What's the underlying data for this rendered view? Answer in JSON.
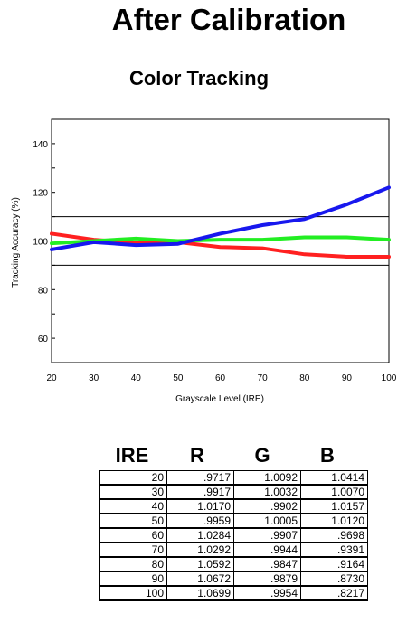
{
  "page_title": "After Calibration",
  "chart_data": {
    "type": "line",
    "title": "Color Tracking",
    "xlabel": "Grayscale Level (IRE)",
    "ylabel": "Tracking Accuracy (%)",
    "x": [
      20,
      30,
      40,
      50,
      60,
      70,
      80,
      90,
      100
    ],
    "xlim": [
      20,
      100
    ],
    "ylim": [
      50,
      150
    ],
    "y_ticks": [
      60,
      80,
      100,
      120,
      140
    ],
    "reference_lines": [
      110,
      90
    ],
    "grid": false,
    "series": [
      {
        "color": "#ff2020",
        "values": [
          103,
          100.5,
          99.3,
          99.5,
          97.5,
          97,
          94.5,
          93.5,
          93.5
        ]
      },
      {
        "color": "#22ee22",
        "values": [
          99,
          100,
          101,
          100,
          100.5,
          100.5,
          101.5,
          101.5,
          100.5
        ]
      },
      {
        "color": "#1818ee",
        "values": [
          96.5,
          99.5,
          98.3,
          98.8,
          103,
          106.5,
          109,
          115,
          122
        ]
      }
    ]
  },
  "table": {
    "headers": [
      "IRE",
      "R",
      "G",
      "B"
    ],
    "rows": [
      [
        "20",
        ".9717",
        "1.0092",
        "1.0414"
      ],
      [
        "30",
        ".9917",
        "1.0032",
        "1.0070"
      ],
      [
        "40",
        "1.0170",
        ".9902",
        "1.0157"
      ],
      [
        "50",
        ".9959",
        "1.0005",
        "1.0120"
      ],
      [
        "60",
        "1.0284",
        ".9907",
        ".9698"
      ],
      [
        "70",
        "1.0292",
        ".9944",
        ".9391"
      ],
      [
        "80",
        "1.0592",
        ".9847",
        ".9164"
      ],
      [
        "90",
        "1.0672",
        ".9879",
        ".8730"
      ],
      [
        "100",
        "1.0699",
        ".9954",
        ".8217"
      ]
    ]
  }
}
